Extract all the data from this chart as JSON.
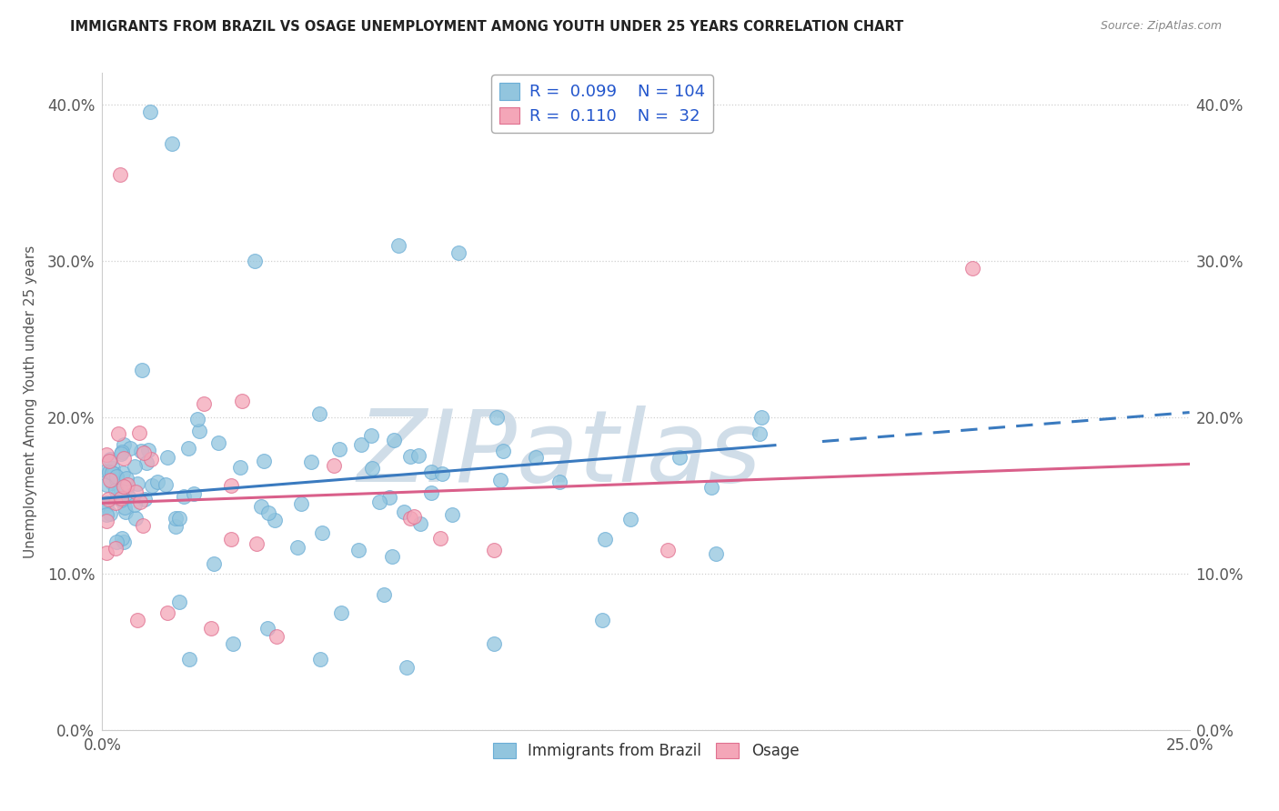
{
  "title": "IMMIGRANTS FROM BRAZIL VS OSAGE UNEMPLOYMENT AMONG YOUTH UNDER 25 YEARS CORRELATION CHART",
  "source": "Source: ZipAtlas.com",
  "ylabel": "Unemployment Among Youth under 25 years",
  "xlim": [
    0.0,
    0.25
  ],
  "ylim": [
    0.0,
    0.42
  ],
  "xticks": [
    0.0,
    0.25
  ],
  "xticklabels": [
    "0.0%",
    "25.0%"
  ],
  "yticks": [
    0.0,
    0.1,
    0.2,
    0.3,
    0.4
  ],
  "yticklabels": [
    "0.0%",
    "10.0%",
    "20.0%",
    "30.0%",
    "40.0%"
  ],
  "blue_color": "#92c5de",
  "blue_edge": "#6baed6",
  "pink_color": "#f4a6b8",
  "pink_edge": "#e07090",
  "trend_blue": "#3a7abf",
  "trend_pink": "#d95f8a",
  "watermark": "ZIPatlas",
  "watermark_color": "#d0dde8",
  "background_color": "#ffffff",
  "grid_color": "#d0d0d0",
  "tick_color": "#555555",
  "title_color": "#222222",
  "source_color": "#888888",
  "legend_text_color": "#2255cc",
  "legend_label_color": "#333333",
  "trend_intercept_blue": 0.148,
  "trend_slope_blue": 0.22,
  "trend_intercept_pink": 0.145,
  "trend_slope_pink": 0.1,
  "trend_solid_end": 0.155,
  "trend_dash_start": 0.165
}
